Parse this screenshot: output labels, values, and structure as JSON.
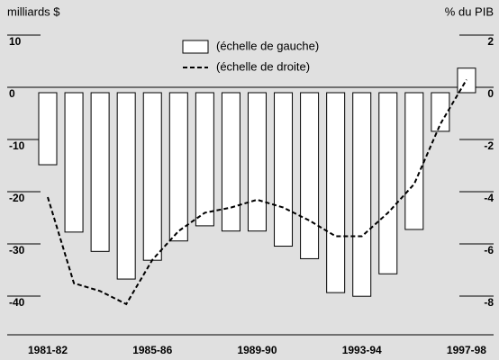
{
  "chart_data": {
    "type": "bar_line",
    "y_label": "milliards $",
    "y2_label": "% du PIB",
    "categories": [
      "1981-82",
      null,
      null,
      null,
      "1985-86",
      null,
      null,
      null,
      "1989-90",
      null,
      null,
      null,
      "1993-94",
      null,
      null,
      null,
      "1997-98"
    ],
    "series": [
      {
        "name": "(échelle de gauche)",
        "type": "bar",
        "color": "#ffffff",
        "values": [
          -13.8,
          -26.7,
          -30.4,
          -35.7,
          -32.1,
          -28.4,
          -25.5,
          -26.5,
          -26.5,
          -29.4,
          -31.8,
          -38.3,
          -39.0,
          -34.7,
          -26.2,
          -7.4,
          4.7
        ]
      },
      {
        "name": "(échelle de droite)",
        "type": "line",
        "axis": "y2",
        "color": "#000000",
        "values": [
          -4.0,
          -7.3,
          -7.6,
          -8.1,
          -6.4,
          -5.3,
          -4.6,
          -4.4,
          -4.1,
          -4.4,
          -4.9,
          -5.5,
          -5.5,
          -4.6,
          -3.5,
          -1.2,
          0.5
        ]
      }
    ],
    "ylim": [
      -45,
      10
    ],
    "yticks": [
      10,
      0,
      -10,
      -20,
      -30,
      -40
    ],
    "y2lim": [
      -9,
      2
    ],
    "y2ticks": [
      2,
      0,
      -2,
      -4,
      -6,
      -8
    ]
  }
}
